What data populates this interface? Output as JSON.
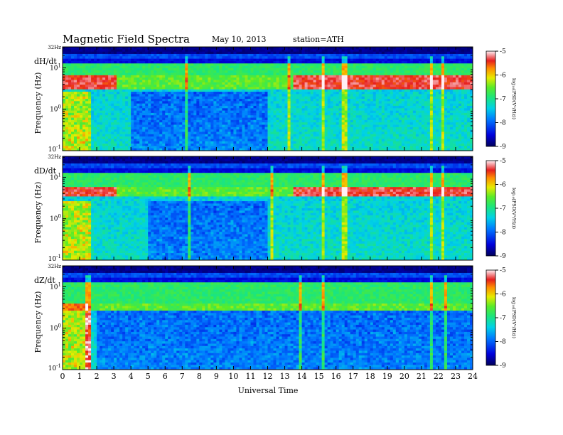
{
  "header": {
    "title": "Magnetic  Field  Spectra",
    "date": "May 10, 2013",
    "station": "station=ATH"
  },
  "chart_data": [
    {
      "type": "heatmap",
      "panel_label": "dH/dt",
      "ylabel": "Frequency  (Hz)",
      "xlabel": "",
      "y_scale": "log",
      "ylim": [
        0.1,
        32
      ],
      "y_ticks": [
        {
          "value": 32,
          "label": "32Hz"
        },
        {
          "value": 10,
          "label": "10",
          "sup": "1"
        },
        {
          "value": 1,
          "label": "10",
          "sup": "0"
        },
        {
          "value": 0.1,
          "label": "10",
          "sup": "-1"
        }
      ],
      "colorbar": {
        "label": "log₁₀(PSD(V²/Hz))",
        "min": -9,
        "max": -5,
        "ticks": [
          "-5",
          "-6",
          "-7",
          "-8",
          "-9"
        ]
      },
      "features": {
        "red_band_hz": [
          3,
          7
        ],
        "quiet_window_ut": [
          4,
          12
        ],
        "spikes_ut": [
          7.3,
          13.3,
          15.3,
          16.5,
          21.6,
          22.3
        ]
      }
    },
    {
      "type": "heatmap",
      "panel_label": "dD/dt",
      "ylabel": "Frequency  (Hz)",
      "xlabel": "",
      "y_scale": "log",
      "ylim": [
        0.1,
        32
      ],
      "y_ticks": [
        {
          "value": 32,
          "label": "32Hz"
        },
        {
          "value": 10,
          "label": "10",
          "sup": "1"
        },
        {
          "value": 1,
          "label": "10",
          "sup": "0"
        },
        {
          "value": 0.1,
          "label": "10",
          "sup": "-1"
        }
      ],
      "colorbar": {
        "label": "log₁₀(PSD(V²/Hz))",
        "min": -9,
        "max": -5,
        "ticks": [
          "-5",
          "-6",
          "-7",
          "-8",
          "-9"
        ]
      },
      "features": {
        "red_band_hz": [
          3.5,
          6
        ],
        "quiet_window_ut": [
          5,
          12
        ],
        "spikes_ut": [
          7.4,
          12.3,
          15.2,
          16.5,
          21.6,
          22.3
        ]
      }
    },
    {
      "type": "heatmap",
      "panel_label": "dZ/dt",
      "ylabel": "Frequency  (Hz)",
      "xlabel": "Universal Time",
      "y_scale": "log",
      "ylim": [
        0.1,
        32
      ],
      "y_ticks": [
        {
          "value": 32,
          "label": "32Hz"
        },
        {
          "value": 10,
          "label": "10",
          "sup": "1"
        },
        {
          "value": 1,
          "label": "10",
          "sup": "0"
        },
        {
          "value": 0.1,
          "label": "10",
          "sup": "-1"
        }
      ],
      "x_ticks": [
        "0",
        "1",
        "2",
        "3",
        "4",
        "5",
        "6",
        "7",
        "8",
        "9",
        "10",
        "11",
        "12",
        "13",
        "14",
        "15",
        "16",
        "17",
        "18",
        "19",
        "20",
        "21",
        "22",
        "23",
        "24"
      ],
      "colorbar": {
        "label": "log₁₀(PSD(V²/Hz))",
        "min": -9,
        "max": -5,
        "ticks": [
          "-5",
          "-6",
          "-7",
          "-8",
          "-9"
        ]
      },
      "features": {
        "red_band_hz": [
          2.5,
          4
        ],
        "quiet_window_ut": [
          2,
          24
        ],
        "spikes_ut": [
          1.5,
          13.9,
          15.3,
          21.6,
          22.4
        ]
      }
    }
  ]
}
